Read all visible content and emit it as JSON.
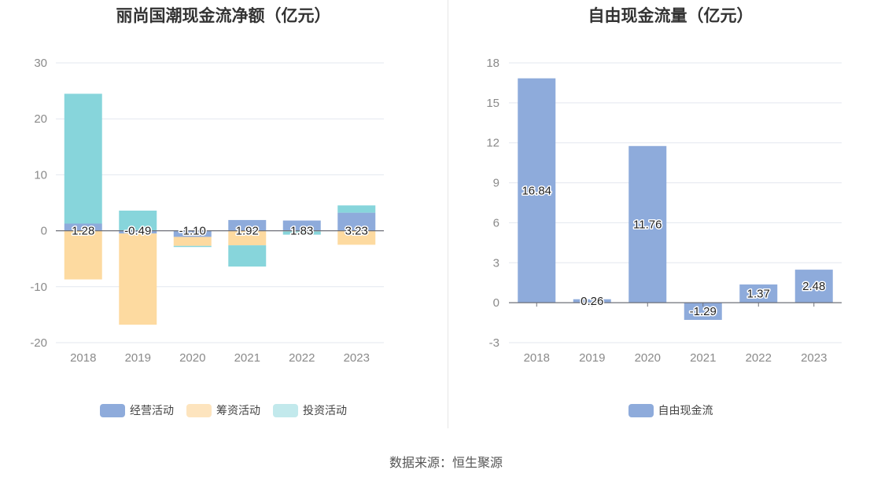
{
  "source": "数据来源：恒生聚源",
  "chart_data": [
    {
      "type": "bar",
      "stacked": true,
      "title": "丽尚国潮现金流净额（亿元）",
      "categories": [
        "2018",
        "2019",
        "2020",
        "2021",
        "2022",
        "2023"
      ],
      "ylim": [
        -20,
        30
      ],
      "yticks": [
        30,
        20,
        10,
        0,
        -10,
        -20
      ],
      "grid": true,
      "legend_position": "bottom",
      "series": [
        {
          "name": "经营活动",
          "color": "#8eabdb",
          "values": [
            1.28,
            -0.49,
            -1.1,
            1.92,
            1.83,
            3.23
          ],
          "labels": [
            "1.28",
            "-0.49",
            "-1.10",
            "1.92",
            "1.83",
            "3.23"
          ]
        },
        {
          "name": "筹资活动",
          "color": "#fddaa0",
          "values": [
            -8.7,
            -16.3,
            -1.6,
            -2.6,
            -0.1,
            -2.5
          ]
        },
        {
          "name": "投资活动",
          "color": "#87d5db",
          "values": [
            23.2,
            3.6,
            -0.2,
            -3.8,
            -0.6,
            1.3
          ]
        }
      ],
      "legend": [
        {
          "name": "经营活动",
          "color": "#8eabdb"
        },
        {
          "name": "筹资活动",
          "color": "#fde4be"
        },
        {
          "name": "投资活动",
          "color": "#c2e9ec"
        }
      ]
    },
    {
      "type": "bar",
      "title": "自由现金流量（亿元）",
      "categories": [
        "2018",
        "2019",
        "2020",
        "2021",
        "2022",
        "2023"
      ],
      "ylim": [
        -3,
        18
      ],
      "yticks": [
        18,
        15,
        12,
        9,
        6,
        3,
        0,
        -3
      ],
      "grid": true,
      "legend_position": "bottom",
      "series": [
        {
          "name": "自由现金流",
          "color": "#8eabdb",
          "values": [
            16.84,
            0.26,
            11.76,
            -1.29,
            1.37,
            2.48
          ],
          "labels": [
            "16.84",
            "0.26",
            "11.76",
            "-1.29",
            "1.37",
            "2.48"
          ]
        }
      ],
      "legend": [
        {
          "name": "自由现金流",
          "color": "#8eabdb"
        }
      ]
    }
  ]
}
